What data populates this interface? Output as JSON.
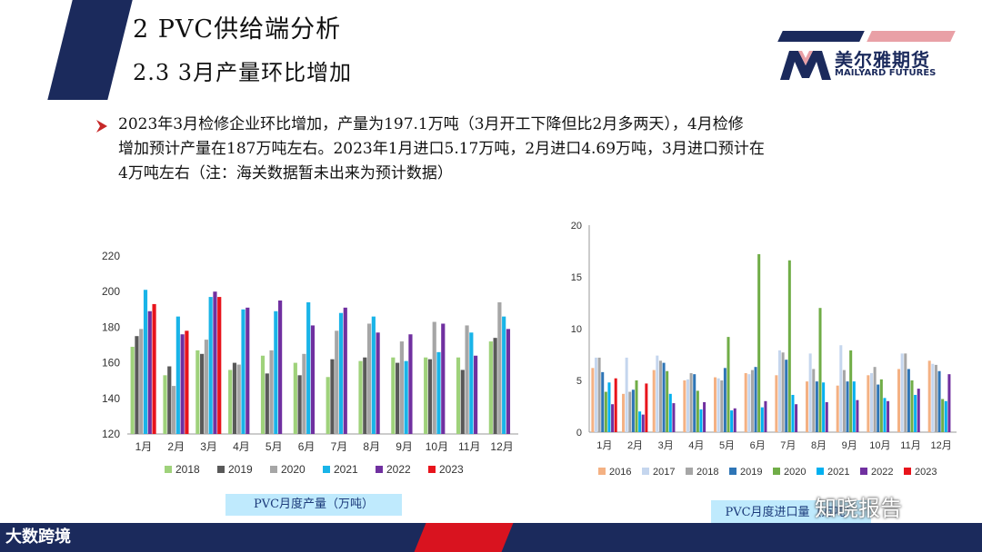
{
  "header": {
    "title": "2 PVC供给端分析",
    "subtitle": "2.3 3月产量环比增加"
  },
  "logo": {
    "name_cn": "美尔雅期货",
    "name_en": "MAILYARD FUTURES"
  },
  "body": {
    "bullet_icon": "arrow-bullet-icon",
    "lines": [
      "2023年3月检修企业环比增加，产量为197.1万吨（3月开工下降但比2月多两天），4月检修",
      "增加预计产量在187万吨左右。2023年1月进口5.17万吨，2月进口4.69万吨，3月进口预计在",
      "4万吨左右（注：海关数据暂未出来为预计数据）"
    ]
  },
  "captions": {
    "left": "PVC月度产量（万吨）",
    "right": "PVC月度进口量（万吨）"
  },
  "footer": {
    "logo_text": "大数跨境",
    "watermark": "知晓报告"
  },
  "chart_data": [
    {
      "type": "bar",
      "title": "",
      "categories": [
        "1月",
        "2月",
        "3月",
        "4月",
        "5月",
        "6月",
        "7月",
        "8月",
        "9月",
        "10月",
        "11月",
        "12月"
      ],
      "ylim": [
        120,
        220
      ],
      "yticks": [
        120,
        140,
        160,
        180,
        200,
        220
      ],
      "grid": false,
      "legend": "bottom",
      "series": [
        {
          "name": "2018",
          "color": "#9fd27b",
          "values": [
            169,
            153,
            167,
            156,
            164,
            160,
            152,
            161,
            163,
            163,
            163,
            172
          ]
        },
        {
          "name": "2019",
          "color": "#595959",
          "values": [
            175,
            158,
            165,
            160,
            154,
            153,
            162,
            163,
            160,
            162,
            156,
            174
          ]
        },
        {
          "name": "2020",
          "color": "#a6a6a6",
          "values": [
            179,
            147,
            173,
            159,
            167,
            165,
            178,
            182,
            172,
            183,
            181,
            194
          ]
        },
        {
          "name": "2021",
          "color": "#19b4e8",
          "values": [
            201,
            186,
            197,
            190,
            189,
            194,
            188,
            186,
            161,
            166,
            177,
            186
          ]
        },
        {
          "name": "2022",
          "color": "#7030a0",
          "values": [
            189,
            176,
            200,
            191,
            195,
            181,
            191,
            177,
            176,
            182,
            164,
            179
          ]
        },
        {
          "name": "2023",
          "color": "#e8141c",
          "values": [
            193,
            178,
            197,
            null,
            null,
            null,
            null,
            null,
            null,
            null,
            null,
            null
          ]
        }
      ]
    },
    {
      "type": "bar",
      "title": "",
      "categories": [
        "1月",
        "2月",
        "3月",
        "4月",
        "5月",
        "6月",
        "7月",
        "8月",
        "9月",
        "10月",
        "11月",
        "12月"
      ],
      "ylim": [
        0,
        20
      ],
      "yticks": [
        0,
        5,
        10,
        15,
        20
      ],
      "grid": false,
      "legend": "bottom",
      "series": [
        {
          "name": "2016",
          "color": "#f4b183",
          "values": [
            6.2,
            3.7,
            6.0,
            5.0,
            5.3,
            5.7,
            5.5,
            4.9,
            4.5,
            5.5,
            6.1,
            6.9
          ]
        },
        {
          "name": "2017",
          "color": "#c5d6ee",
          "values": [
            7.2,
            7.2,
            7.4,
            5.1,
            5.2,
            5.6,
            7.9,
            7.6,
            8.4,
            5.7,
            7.6,
            6.6
          ]
        },
        {
          "name": "2018",
          "color": "#a6a6a6",
          "values": [
            7.2,
            3.9,
            6.9,
            5.7,
            5.0,
            6.0,
            7.7,
            6.1,
            6.0,
            6.3,
            7.6,
            6.5
          ]
        },
        {
          "name": "2019",
          "color": "#2e75b6",
          "values": [
            5.8,
            4.1,
            6.7,
            5.6,
            6.2,
            6.3,
            7.0,
            4.9,
            4.9,
            4.6,
            6.1,
            5.9
          ]
        },
        {
          "name": "2020",
          "color": "#70ad47",
          "values": [
            3.9,
            5.0,
            5.9,
            4.0,
            9.2,
            17.2,
            16.6,
            12.0,
            7.9,
            5.1,
            5.0,
            3.2
          ]
        },
        {
          "name": "2021",
          "color": "#00b0f0",
          "values": [
            4.8,
            2.0,
            3.7,
            2.2,
            2.1,
            2.4,
            3.6,
            4.8,
            4.9,
            3.3,
            3.6,
            3.0
          ]
        },
        {
          "name": "2022",
          "color": "#7030a0",
          "values": [
            2.7,
            1.7,
            2.8,
            2.9,
            2.3,
            3.0,
            2.7,
            2.9,
            3.1,
            3.0,
            4.2,
            5.6
          ]
        },
        {
          "name": "2023",
          "color": "#e8141c",
          "values": [
            5.2,
            4.7,
            null,
            null,
            null,
            null,
            null,
            null,
            null,
            null,
            null,
            null
          ]
        }
      ]
    }
  ]
}
